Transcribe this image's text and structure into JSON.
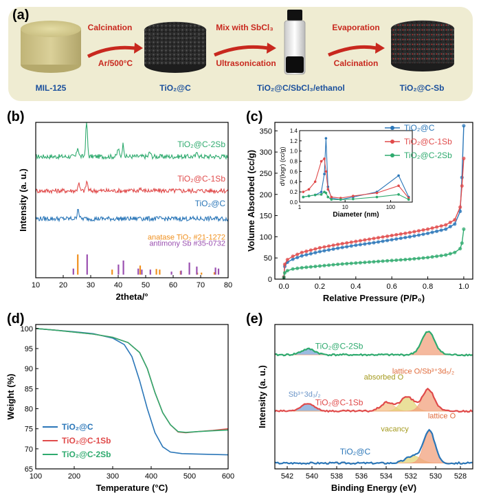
{
  "figure": {
    "panel_a": {
      "label": "(a)",
      "stage_labels": [
        "MIL-125",
        "TiO₂@C",
        "TiO₂@C/SbCl₃/ethanol",
        "TiO₂@C-Sb"
      ],
      "arrow1": {
        "top": "Calcination",
        "bottom": "Ar/500°C"
      },
      "arrow2": {
        "top": "Mix with SbCl₃",
        "bottom": "Ultrasonication"
      },
      "arrow3": {
        "top": "Evaporation",
        "bottom": "Calcination"
      },
      "colors": {
        "background": "#efecd2",
        "arrow": "#c8281e",
        "label_text": "#1a4f9c",
        "arrow_text": "#c8281e"
      }
    }
  },
  "chart_data": [
    {
      "panel": "(b)",
      "type": "line",
      "xlabel": "2theta/°",
      "ylabel": "Intensity (a. u.)",
      "xlim": [
        10,
        80
      ],
      "xticks": [
        10,
        20,
        30,
        40,
        50,
        60,
        70,
        80
      ],
      "series": [
        {
          "name": "TiO₂@C-2Sb",
          "color": "#2eaa6e",
          "baseline": 0.78,
          "peaks": [
            [
              25.3,
              0.06
            ],
            [
              28.5,
              0.22
            ],
            [
              40.0,
              0.05
            ],
            [
              41.8,
              0.08
            ],
            [
              51.5,
              0.03
            ],
            [
              68.8,
              0.03
            ]
          ]
        },
        {
          "name": "TiO₂@C-1Sb",
          "color": "#e04a4a",
          "baseline": 0.56,
          "peaks": [
            [
              25.6,
              0.05
            ],
            [
              28.6,
              0.06
            ],
            [
              48.0,
              0.02
            ]
          ]
        },
        {
          "name": "TiO₂@C",
          "color": "#2a76b8",
          "baseline": 0.38,
          "peaks": [
            [
              25.4,
              0.07
            ],
            [
              48.0,
              0.015
            ]
          ]
        }
      ],
      "references": [
        {
          "name": "anatase TiO₂ #21-1272",
          "color": "#f0901e",
          "sticks": [
            [
              25.3,
              1.0
            ],
            [
              37.8,
              0.25
            ],
            [
              48.0,
              0.45
            ],
            [
              53.9,
              0.28
            ],
            [
              55.1,
              0.25
            ],
            [
              62.7,
              0.18
            ],
            [
              68.8,
              0.1
            ],
            [
              70.3,
              0.1
            ],
            [
              75.0,
              0.12
            ]
          ]
        },
        {
          "name": "antimony Sb #35-0732",
          "color": "#9a4fb0",
          "sticks": [
            [
              23.7,
              0.3
            ],
            [
              28.7,
              1.0
            ],
            [
              40.1,
              0.5
            ],
            [
              41.9,
              0.7
            ],
            [
              47.3,
              0.3
            ],
            [
              48.6,
              0.25
            ],
            [
              51.7,
              0.25
            ],
            [
              59.4,
              0.15
            ],
            [
              62.9,
              0.2
            ],
            [
              65.9,
              0.6
            ],
            [
              68.6,
              0.4
            ],
            [
              75.4,
              0.35
            ],
            [
              76.5,
              0.3
            ]
          ]
        }
      ]
    },
    {
      "panel": "(c)",
      "type": "line",
      "xlabel": "Relative Pressure (P/P₀)",
      "ylabel": "Volume Absorbed (cc/g)",
      "xlim": [
        -0.05,
        1.05
      ],
      "ylim": [
        0,
        370
      ],
      "xticks": [
        0.0,
        0.2,
        0.4,
        0.6,
        0.8,
        1.0
      ],
      "yticks": [
        0,
        50,
        100,
        150,
        200,
        250,
        300,
        350
      ],
      "series": [
        {
          "name": "TiO₂@C",
          "color": "#2a76b8",
          "points": [
            [
              0,
              5
            ],
            [
              0.005,
              30
            ],
            [
              0.02,
              40
            ],
            [
              0.05,
              47
            ],
            [
              0.1,
              55
            ],
            [
              0.2,
              65
            ],
            [
              0.3,
              73
            ],
            [
              0.4,
              80
            ],
            [
              0.5,
              86
            ],
            [
              0.6,
              93
            ],
            [
              0.7,
              100
            ],
            [
              0.8,
              108
            ],
            [
              0.9,
              118
            ],
            [
              0.95,
              130
            ],
            [
              0.98,
              160
            ],
            [
              0.99,
              240
            ],
            [
              1.0,
              362
            ]
          ]
        },
        {
          "name": "TiO₂@C-1Sb",
          "color": "#e04a4a",
          "points": [
            [
              0,
              5
            ],
            [
              0.005,
              35
            ],
            [
              0.02,
              46
            ],
            [
              0.05,
              54
            ],
            [
              0.1,
              63
            ],
            [
              0.2,
              74
            ],
            [
              0.3,
              82
            ],
            [
              0.4,
              89
            ],
            [
              0.5,
              96
            ],
            [
              0.6,
              103
            ],
            [
              0.7,
              110
            ],
            [
              0.8,
              118
            ],
            [
              0.9,
              128
            ],
            [
              0.95,
              140
            ],
            [
              0.98,
              170
            ],
            [
              0.99,
              220
            ],
            [
              1.0,
              285
            ]
          ]
        },
        {
          "name": "TiO₂@C-2Sb",
          "color": "#2eaa6e",
          "points": [
            [
              0,
              3
            ],
            [
              0.005,
              15
            ],
            [
              0.02,
              20
            ],
            [
              0.05,
              24
            ],
            [
              0.1,
              27
            ],
            [
              0.2,
              31
            ],
            [
              0.3,
              35
            ],
            [
              0.4,
              38
            ],
            [
              0.5,
              41
            ],
            [
              0.6,
              44
            ],
            [
              0.7,
              47
            ],
            [
              0.8,
              51
            ],
            [
              0.9,
              57
            ],
            [
              0.95,
              63
            ],
            [
              0.98,
              72
            ],
            [
              0.99,
              85
            ],
            [
              1.0,
              118
            ]
          ]
        }
      ],
      "inset": {
        "xlabel": "Diameter (nm)",
        "ylabel": "dV(logr) (cc/g)",
        "xscale": "log",
        "xlim": [
          1,
          300
        ],
        "ylim": [
          0,
          1.4
        ],
        "yticks": [
          0.0,
          0.2,
          0.4,
          0.6,
          0.8,
          1.0,
          1.2,
          1.4
        ],
        "xticks": [
          1,
          10,
          100
        ],
        "series": [
          {
            "name": "TiO₂@C",
            "color": "#2a76b8",
            "points": [
              [
                1.2,
                0.1
              ],
              [
                1.6,
                0.12
              ],
              [
                2.2,
                0.14
              ],
              [
                3.0,
                0.2
              ],
              [
                3.5,
                0.55
              ],
              [
                3.8,
                1.25
              ],
              [
                4.2,
                0.3
              ],
              [
                5,
                0.08
              ],
              [
                8,
                0.05
              ],
              [
                15,
                0.1
              ],
              [
                50,
                0.2
              ],
              [
                150,
                0.52
              ],
              [
                250,
                0.1
              ]
            ]
          },
          {
            "name": "TiO₂@C-1Sb",
            "color": "#e04a4a",
            "points": [
              [
                1.2,
                0.2
              ],
              [
                1.6,
                0.25
              ],
              [
                2.2,
                0.4
              ],
              [
                3.0,
                0.8
              ],
              [
                3.5,
                0.85
              ],
              [
                3.8,
                0.6
              ],
              [
                4.2,
                0.25
              ],
              [
                5,
                0.1
              ],
              [
                8,
                0.08
              ],
              [
                15,
                0.12
              ],
              [
                50,
                0.18
              ],
              [
                150,
                0.32
              ],
              [
                250,
                0.08
              ]
            ]
          },
          {
            "name": "TiO₂@C-2Sb",
            "color": "#2eaa6e",
            "points": [
              [
                1.2,
                0.1
              ],
              [
                1.6,
                0.12
              ],
              [
                2.2,
                0.14
              ],
              [
                3.0,
                0.15
              ],
              [
                3.5,
                0.2
              ],
              [
                3.8,
                0.18
              ],
              [
                4.2,
                0.1
              ],
              [
                5,
                0.05
              ],
              [
                8,
                0.05
              ],
              [
                15,
                0.06
              ],
              [
                50,
                0.1
              ],
              [
                150,
                0.15
              ],
              [
                250,
                0.05
              ]
            ]
          }
        ]
      }
    },
    {
      "panel": "(d)",
      "type": "line",
      "xlabel": "Temperature (°C)",
      "ylabel": "Weight (%)",
      "xlim": [
        100,
        600
      ],
      "ylim": [
        65,
        101
      ],
      "xticks": [
        100,
        200,
        300,
        400,
        500,
        600
      ],
      "yticks": [
        65,
        70,
        75,
        80,
        85,
        90,
        95,
        100
      ],
      "series": [
        {
          "name": "TiO₂@C",
          "color": "#2a76b8",
          "points": [
            [
              100,
              100
            ],
            [
              150,
              99.6
            ],
            [
              200,
              99.2
            ],
            [
              250,
              98.7
            ],
            [
              300,
              97.6
            ],
            [
              330,
              96
            ],
            [
              350,
              93
            ],
            [
              370,
              87
            ],
            [
              390,
              80
            ],
            [
              410,
              74
            ],
            [
              430,
              70.5
            ],
            [
              450,
              69.2
            ],
            [
              480,
              68.8
            ],
            [
              520,
              68.7
            ],
            [
              600,
              68.5
            ]
          ]
        },
        {
          "name": "TiO₂@C-1Sb",
          "color": "#e04a4a",
          "points": [
            [
              100,
              100
            ],
            [
              150,
              99.6
            ],
            [
              200,
              99.1
            ],
            [
              250,
              98.6
            ],
            [
              300,
              97.8
            ],
            [
              340,
              96.5
            ],
            [
              370,
              94
            ],
            [
              390,
              90
            ],
            [
              410,
              84
            ],
            [
              430,
              79
            ],
            [
              450,
              76
            ],
            [
              470,
              74.2
            ],
            [
              490,
              74.0
            ],
            [
              520,
              74.3
            ],
            [
              560,
              74.6
            ],
            [
              600,
              75.0
            ]
          ]
        },
        {
          "name": "TiO₂@C-2Sb",
          "color": "#2eaa6e",
          "points": [
            [
              100,
              100
            ],
            [
              150,
              99.6
            ],
            [
              200,
              99.1
            ],
            [
              250,
              98.6
            ],
            [
              300,
              97.8
            ],
            [
              340,
              96.5
            ],
            [
              370,
              94
            ],
            [
              390,
              90
            ],
            [
              410,
              84
            ],
            [
              430,
              79
            ],
            [
              450,
              76
            ],
            [
              470,
              74.3
            ],
            [
              490,
              74.1
            ],
            [
              520,
              74.3
            ],
            [
              560,
              74.5
            ],
            [
              600,
              74.7
            ]
          ]
        }
      ]
    },
    {
      "panel": "(e)",
      "type": "line",
      "xlabel": "Binding Energy (eV)",
      "ylabel": "Intensity (a. u.)",
      "xlim": [
        543,
        527
      ],
      "xticks": [
        542,
        540,
        538,
        536,
        534,
        532,
        530,
        528
      ],
      "series": [
        {
          "name": "TiO₂@C-2Sb",
          "color": "#2eaa6e",
          "baseline": 0.79,
          "components": [
            {
              "label": "",
              "center": 540.3,
              "height": 0.04,
              "width": 0.8,
              "color": "#7aa3d6"
            },
            {
              "label": "",
              "center": 530.6,
              "height": 0.16,
              "width": 0.75,
              "color": "#f2a27e"
            }
          ]
        },
        {
          "name": "TiO₂@C-1Sb",
          "color": "#e04a4a",
          "baseline": 0.4,
          "components": [
            {
              "label": "Sb³⁺3d₃/₂",
              "center": 540.3,
              "height": 0.05,
              "width": 0.8,
              "color": "#7aa3d6"
            },
            {
              "label": "",
              "center": 533.9,
              "height": 0.06,
              "width": 0.75,
              "color": "#f4c28a"
            },
            {
              "label": "absorbed O",
              "center": 532.3,
              "height": 0.1,
              "width": 0.75,
              "color": "#e3d67a"
            },
            {
              "label": "lattice O/Sb³⁺3d₅/₂",
              "center": 530.6,
              "height": 0.15,
              "width": 0.7,
              "color": "#f2a27e"
            }
          ]
        },
        {
          "name": "TiO₂@C",
          "color": "#2a76b8",
          "baseline": 0.04,
          "components": [
            {
              "label": "vacancy",
              "center": 531.8,
              "height": 0.05,
              "width": 0.85,
              "color": "#e3d67a"
            },
            {
              "label": "lattice O",
              "center": 530.5,
              "height": 0.22,
              "width": 0.65,
              "color": "#f2a27e"
            }
          ]
        }
      ]
    }
  ]
}
